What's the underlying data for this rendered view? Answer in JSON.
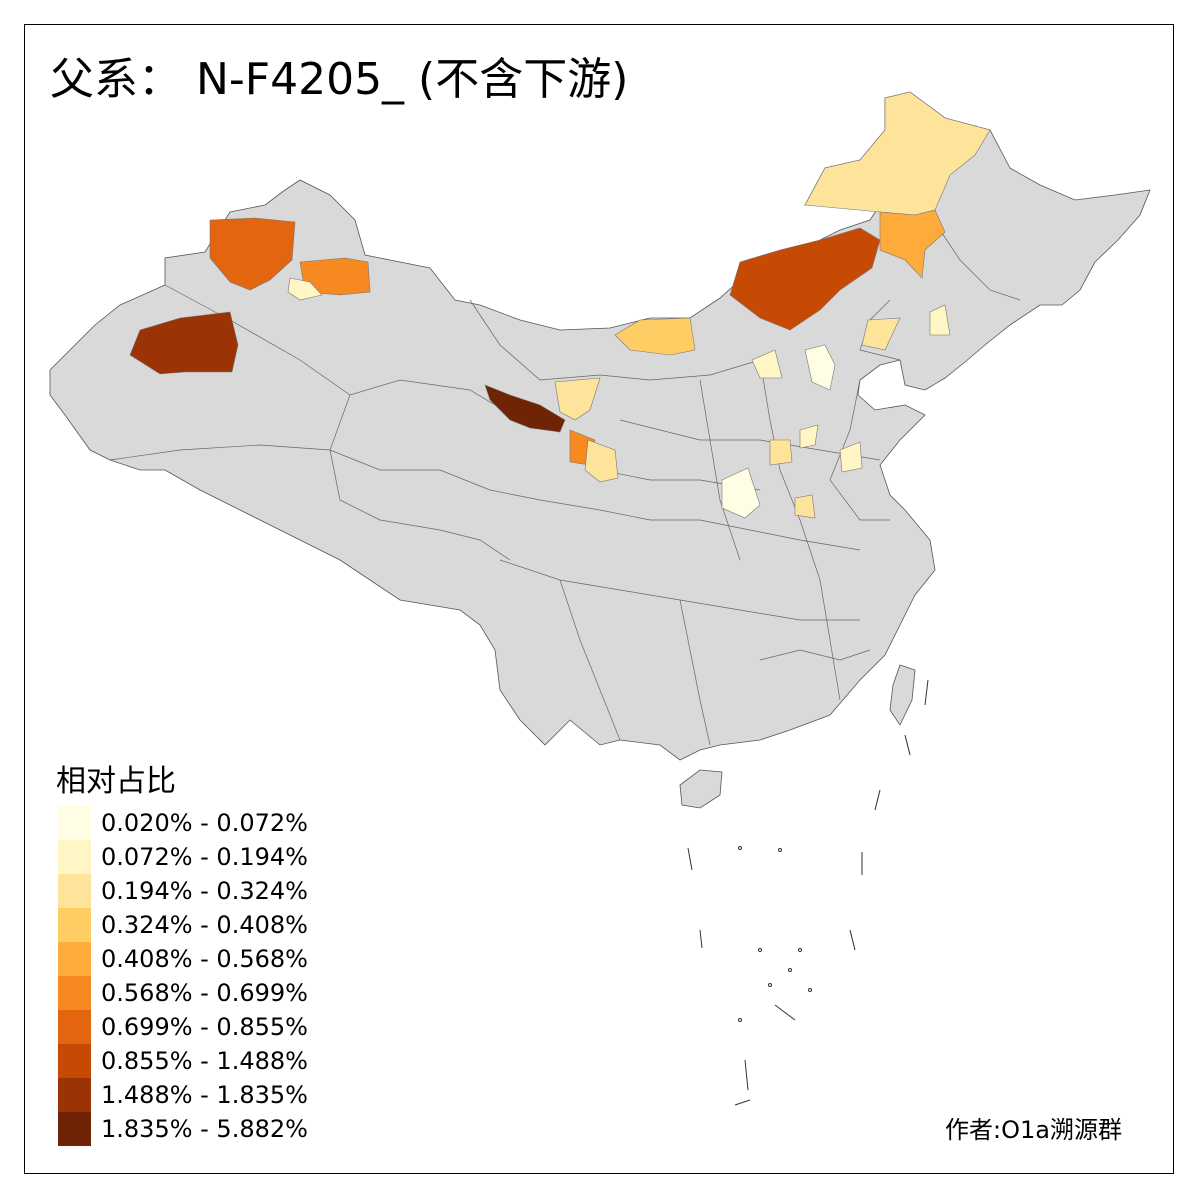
{
  "title": "父系： N-F4205_ (不含下游)",
  "legend": {
    "title": "相对占比",
    "items": [
      {
        "label": "0.020% - 0.072%",
        "color": "#FFFEE5"
      },
      {
        "label": "0.072% - 0.194%",
        "color": "#FFF5C5"
      },
      {
        "label": "0.194% - 0.324%",
        "color": "#FEE49A"
      },
      {
        "label": "0.324% - 0.408%",
        "color": "#FECE65"
      },
      {
        "label": "0.408% - 0.568%",
        "color": "#FDAC3B"
      },
      {
        "label": "0.568% - 0.699%",
        "color": "#F6891F"
      },
      {
        "label": "0.699% - 0.855%",
        "color": "#E36510"
      },
      {
        "label": "0.855% - 1.488%",
        "color": "#C64A04"
      },
      {
        "label": "1.488% - 1.835%",
        "color": "#9B3304"
      },
      {
        "label": "1.835% - 5.882%",
        "color": "#6E2405"
      }
    ]
  },
  "author": "作者:O1a溯源群",
  "colors": {
    "base_region": "#D9D9D9",
    "border": "#555555"
  }
}
